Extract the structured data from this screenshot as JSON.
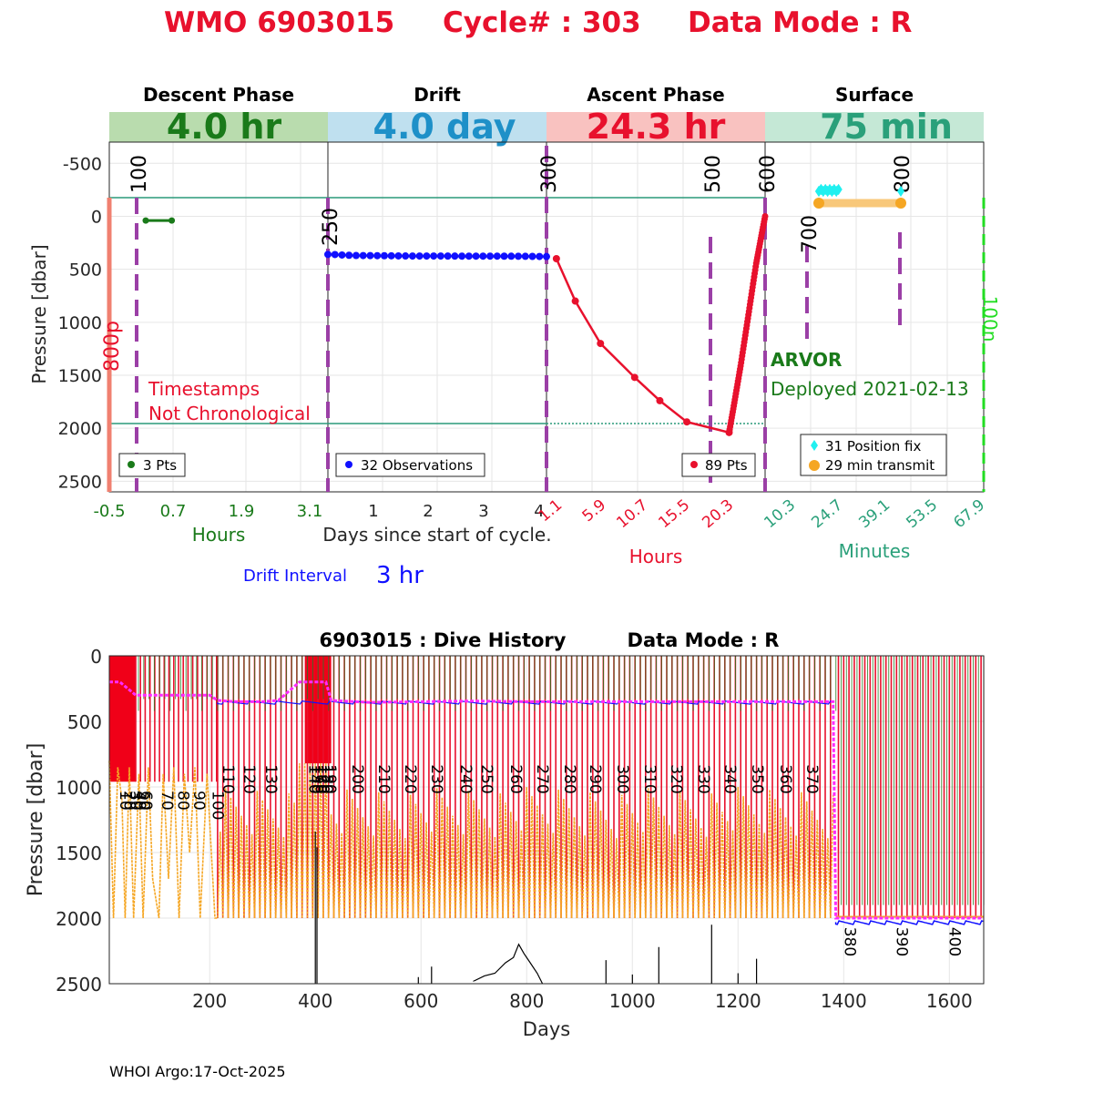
{
  "title": {
    "wmo": "WMO 6903015",
    "cycle": "Cycle# : 303",
    "data_mode": "Data Mode : R"
  },
  "colors": {
    "title_red": "#e8112d",
    "descent_green": "#1a7a1a",
    "drift_blue": "#1e90c8",
    "ascent_red": "#e8112d",
    "surface_teal": "#2aa07a",
    "purple": "#9b3fa6",
    "magenta": "#ff2aff",
    "orange": "#f5a623",
    "cyan": "#20f0f0",
    "lime": "#22dd22"
  },
  "top_panel": {
    "phases": [
      {
        "name": "Descent Phase",
        "duration": "4.0 hr"
      },
      {
        "name": "Drift",
        "duration": "4.0 day"
      },
      {
        "name": "Ascent Phase",
        "duration": "24.3 hr"
      },
      {
        "name": "Surface",
        "duration": "75 min"
      }
    ],
    "ylabel": "Pressure [dbar]",
    "yticks": [
      "-500",
      "0",
      "500",
      "1000",
      "1500",
      "2000",
      "2500"
    ],
    "ytick_values": [
      -500,
      0,
      500,
      1000,
      1500,
      2000,
      2500
    ],
    "ylim": [
      -700,
      2600
    ],
    "descent_xticks": [
      "-0.5",
      "0.7",
      "1.9",
      "3.1"
    ],
    "descent_xlabel": "Hours",
    "drift_xticks": [
      "1",
      "2",
      "3",
      "4"
    ],
    "drift_xlabel": "Days since start of cycle.",
    "ascent_xticks": [
      "1.1",
      "5.9",
      "10.7",
      "15.5",
      "20.3"
    ],
    "ascent_xlabel": "Hours",
    "surface_xticks": [
      "10.3",
      "24.7",
      "39.1",
      "53.5",
      "67.9"
    ],
    "surface_xlabel": "Minutes",
    "cycle_markers": [
      "100",
      "250",
      "300",
      "500",
      "600",
      "700",
      "800"
    ],
    "left_marker": "800p",
    "right_marker": "100n",
    "warning_line1": "Timestamps",
    "warning_line2": "Not Chronological",
    "float_type": "ARVOR",
    "deployed": "Deployed 2021-02-13",
    "legends": {
      "descent": "3 Pts",
      "drift": "32 Observations",
      "ascent": "89 Pts",
      "position": "31 Position fix",
      "transmit": "29 min transmit"
    },
    "drift_interval_label": "Drift Interval",
    "drift_interval_value": "3 hr"
  },
  "chart_data": [
    {
      "type": "line",
      "title": "WMO 6903015   Cycle# : 303   Data Mode : R",
      "ylabel": "Pressure [dbar]",
      "ylim": [
        -700,
        2600
      ],
      "series": [
        {
          "name": "Descent",
          "x_hours": [
            0.2,
            0.7
          ],
          "y": [
            40,
            40
          ]
        },
        {
          "name": "Drift",
          "x_days": [
            0.1,
            0.25,
            0.5,
            1,
            1.5,
            2,
            2.5,
            3,
            3.5,
            4.0
          ],
          "y": [
            360,
            365,
            370,
            372,
            375,
            375,
            376,
            376,
            377,
            380
          ]
        },
        {
          "name": "Ascent",
          "x_hours": [
            1.1,
            3.2,
            6.0,
            9.8,
            12.6,
            15.6,
            20.3,
            20.8,
            21.6,
            22.5,
            23.3,
            24.3
          ],
          "y": [
            400,
            800,
            1200,
            1520,
            1740,
            1940,
            2040,
            1800,
            1400,
            900,
            450,
            0
          ]
        }
      ]
    },
    {
      "type": "line",
      "title": "6903015 : Dive History      Data Mode : R",
      "xlabel": "Days",
      "ylabel": "Pressure [dbar]",
      "xlim": [
        10,
        1665
      ],
      "ylim": [
        0,
        2500
      ],
      "xticks": [
        200,
        400,
        600,
        800,
        1000,
        1200,
        1400,
        1600
      ],
      "yticks": [
        0,
        500,
        1000,
        1500,
        2000,
        2500
      ],
      "series": [
        {
          "name": "Park pressure",
          "x": [
            10,
            30,
            60,
            100,
            150,
            200,
            215,
            250,
            300,
            330,
            370,
            380,
            420,
            430,
            500,
            600,
            700,
            800,
            900,
            1000,
            1100,
            1200,
            1300,
            1380,
            1385,
            1400,
            1500,
            1665
          ],
          "y": [
            200,
            200,
            300,
            300,
            300,
            300,
            340,
            350,
            350,
            340,
            200,
            200,
            200,
            340,
            355,
            350,
            345,
            350,
            350,
            350,
            350,
            350,
            350,
            350,
            2000,
            2000,
            2000,
            2000
          ]
        },
        {
          "name": "Profile pressure",
          "x": [
            10,
            20,
            40,
            60,
            80,
            100,
            120,
            140,
            160,
            200,
            210,
            1380,
            1665
          ],
          "y": [
            1000,
            2000,
            1000,
            2000,
            1000,
            2000,
            1000,
            2000,
            1000,
            2000,
            2000,
            2000,
            2000
          ]
        }
      ],
      "cycle_labels": [
        "10",
        "20",
        "30",
        "40",
        "50",
        "60",
        "70",
        "80",
        "90",
        "100",
        "110",
        "120",
        "130",
        "140",
        "150",
        "160",
        "170",
        "180",
        "190",
        "200",
        "210",
        "220",
        "230",
        "240",
        "250",
        "260",
        "270",
        "280",
        "290",
        "300",
        "310",
        "320",
        "330",
        "340",
        "350",
        "360",
        "370",
        "380",
        "390",
        "400"
      ],
      "footer": "WHOI Argo:17-Oct-2025"
    }
  ],
  "bottom_panel": {
    "title_left": "6903015 : Dive History",
    "title_right": "Data Mode : R",
    "xlabel": "Days",
    "ylabel": "Pressure [dbar]",
    "xticks": [
      "200",
      "400",
      "600",
      "800",
      "1000",
      "1200",
      "1400",
      "1600"
    ],
    "yticks": [
      "0",
      "500",
      "1000",
      "1500",
      "2000",
      "2500"
    ]
  },
  "footer": "WHOI Argo:17-Oct-2025"
}
